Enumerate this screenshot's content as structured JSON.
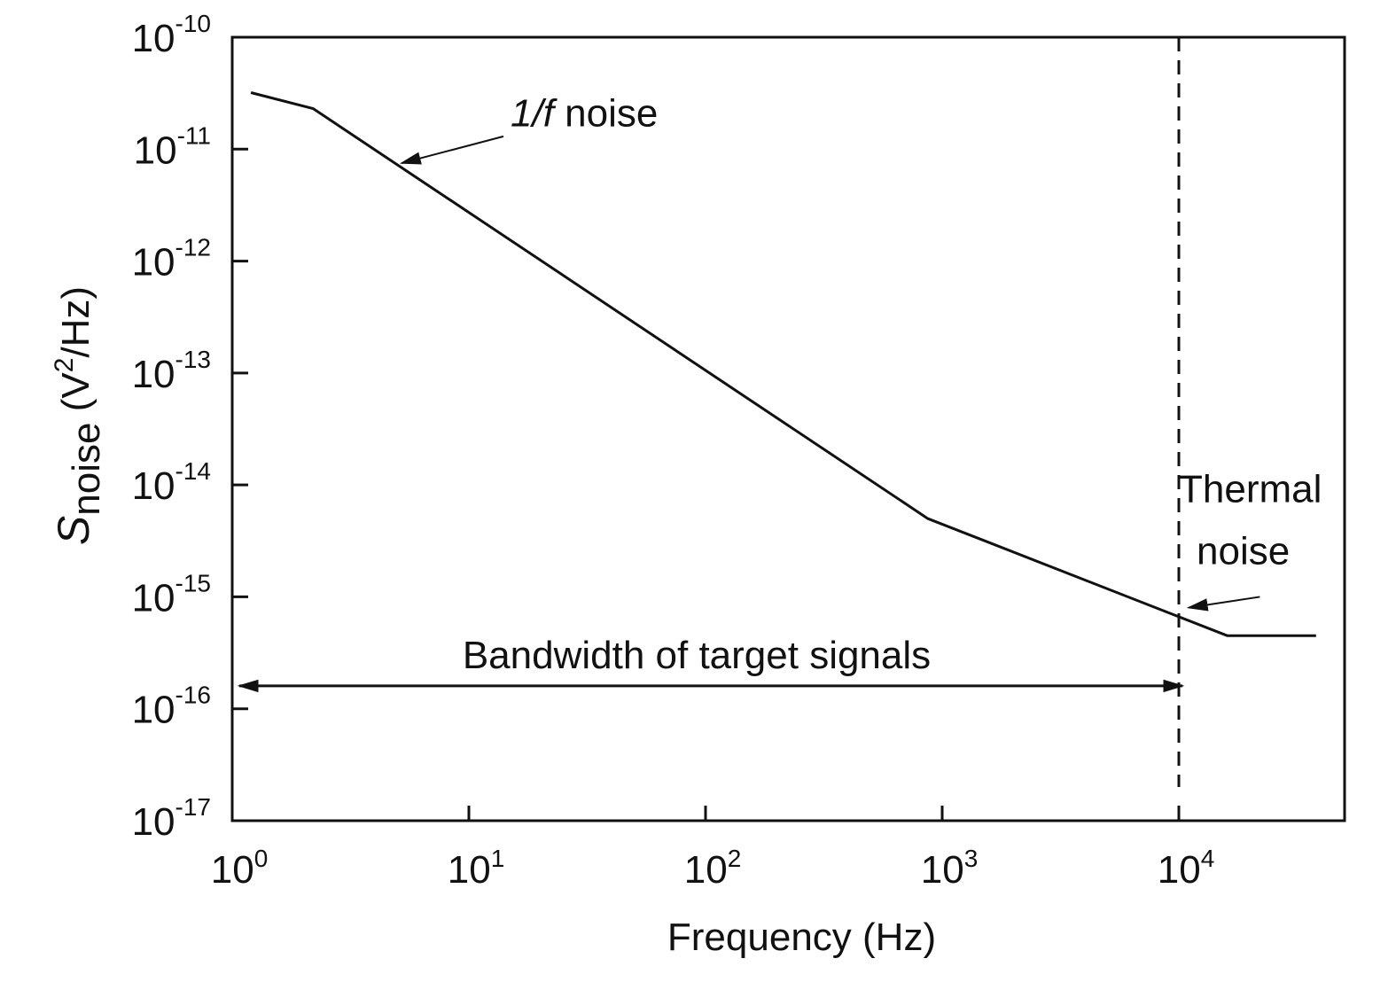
{
  "chart_data": {
    "type": "line",
    "x_scale": "log",
    "y_scale": "log",
    "xlim": [
      1,
      40000
    ],
    "ylim": [
      1e-17,
      1e-10
    ],
    "grid": false,
    "legend": "none",
    "xlabel": "Frequency (Hz)",
    "ylabel": {
      "symbol": "S",
      "subscript": "noise",
      "unit_open": " (V",
      "unit_power": "2",
      "unit_close": "/Hz)"
    },
    "x_ticks": [
      {
        "value": 1,
        "base": "10",
        "exp": "0"
      },
      {
        "value": 10,
        "base": "10",
        "exp": "1"
      },
      {
        "value": 100,
        "base": "10",
        "exp": "2"
      },
      {
        "value": 1000,
        "base": "10",
        "exp": "3"
      },
      {
        "value": 10000,
        "base": "10",
        "exp": "4"
      }
    ],
    "y_ticks": [
      {
        "value": 1e-10,
        "base": "10",
        "exp": "-10"
      },
      {
        "value": 1e-11,
        "base": "10",
        "exp": "-11"
      },
      {
        "value": 1e-12,
        "base": "10",
        "exp": "-12"
      },
      {
        "value": 1e-13,
        "base": "10",
        "exp": "-13"
      },
      {
        "value": 1e-14,
        "base": "10",
        "exp": "-14"
      },
      {
        "value": 1e-15,
        "base": "10",
        "exp": "-15"
      },
      {
        "value": 1e-16,
        "base": "10",
        "exp": "-16"
      },
      {
        "value": 1e-17,
        "base": "10",
        "exp": "-17"
      }
    ],
    "series": [
      {
        "x": [
          1.2,
          2.2,
          870,
          16000,
          38000
        ],
        "y": [
          3.2e-11,
          2.3e-11,
          5e-15,
          4.5e-16,
          4.5e-16
        ]
      }
    ],
    "markers": {
      "vline": {
        "x": 10000,
        "style": "dashed"
      },
      "bandwidth": {
        "x_start": 1,
        "x_end": 10000,
        "y": 1.6e-16,
        "label": "Bandwidth of target signals"
      }
    },
    "annotations": [
      {
        "label_italic": "1/f",
        "label": " noise",
        "text_at": [
          15,
          1.6e-11
        ],
        "arrow_from": [
          14,
          1.3e-11
        ],
        "arrow_to": [
          5.2,
          7.5e-12
        ]
      },
      {
        "lines": [
          "Thermal",
          "noise"
        ],
        "text_at": [
          10000,
          7e-15
        ],
        "line_gap": 70,
        "arrow_from": [
          22000,
          1e-15
        ],
        "arrow_to": [
          11000,
          8e-16
        ]
      }
    ],
    "colors": {
      "line": "#111111",
      "axis": "#111111",
      "background": "#ffffff"
    }
  }
}
